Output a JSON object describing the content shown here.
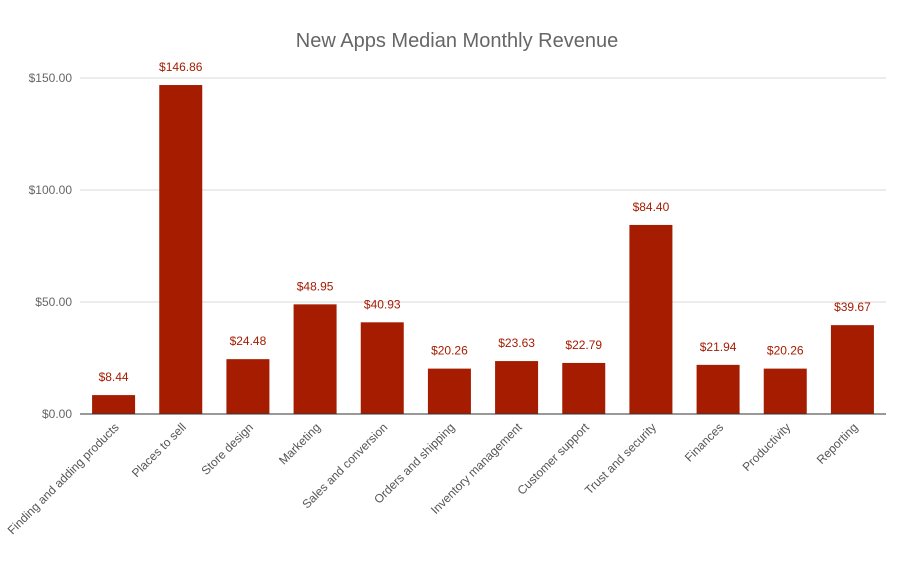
{
  "chart_data": {
    "type": "bar",
    "title": "New Apps Median Monthly Revenue",
    "xlabel": "",
    "ylabel": "",
    "categories": [
      "Finding and adding products",
      "Places to sell",
      "Store design",
      "Marketing",
      "Sales and conversion",
      "Orders and shipping",
      "Inventory management",
      "Customer support",
      "Trust and security",
      "Finances",
      "Productivity",
      "Reporting"
    ],
    "values": [
      8.44,
      146.86,
      24.48,
      48.95,
      40.93,
      20.26,
      23.63,
      22.79,
      84.4,
      21.94,
      20.26,
      39.67
    ],
    "value_labels": [
      "$8.44",
      "$146.86",
      "$24.48",
      "$48.95",
      "$40.93",
      "$20.26",
      "$23.63",
      "$22.79",
      "$84.40",
      "$21.94",
      "$20.26",
      "$39.67"
    ],
    "ylim": [
      0,
      150
    ],
    "yticks": [
      0,
      50,
      100,
      150
    ],
    "ytick_labels": [
      "$0.00",
      "$50.00",
      "$100.00",
      "$150.00"
    ],
    "grid": true,
    "legend": "none",
    "bar_color": "#a51c00",
    "label_color": "#a51c00"
  }
}
